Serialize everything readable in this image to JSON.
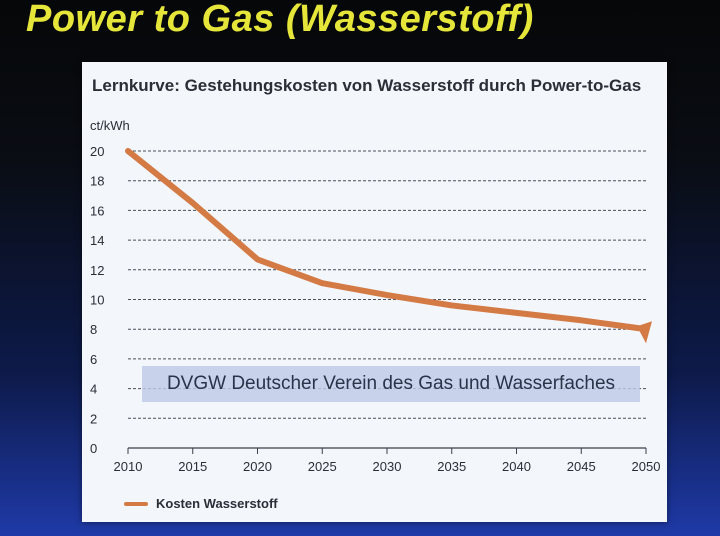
{
  "slide": {
    "title": "Power to Gas (Wasserstoff)"
  },
  "watermark": "DVGW Deutscher Verein des Gas und Wasserfaches",
  "colors": {
    "series": "#d37a45",
    "title": "#e6e53a"
  },
  "chart_data": {
    "type": "line",
    "title": "Lernkurve: Gestehungskosten von Wasserstoff durch Power-to-Gas",
    "ylabel": "ct/kWh",
    "xlabel": "",
    "x": [
      2010,
      2015,
      2020,
      2025,
      2030,
      2035,
      2040,
      2045,
      2050
    ],
    "xlim": [
      2010,
      2050
    ],
    "ylim": [
      0,
      20
    ],
    "yticks": [
      0,
      2,
      4,
      6,
      8,
      10,
      12,
      14,
      16,
      18,
      20
    ],
    "grid": true,
    "legend_position": "bottom-left",
    "series": [
      {
        "name": "Kosten Wasserstoff",
        "values": [
          20.0,
          16.5,
          12.7,
          11.1,
          10.3,
          9.6,
          9.1,
          8.6,
          8.0
        ],
        "end_arrow": true
      }
    ]
  }
}
